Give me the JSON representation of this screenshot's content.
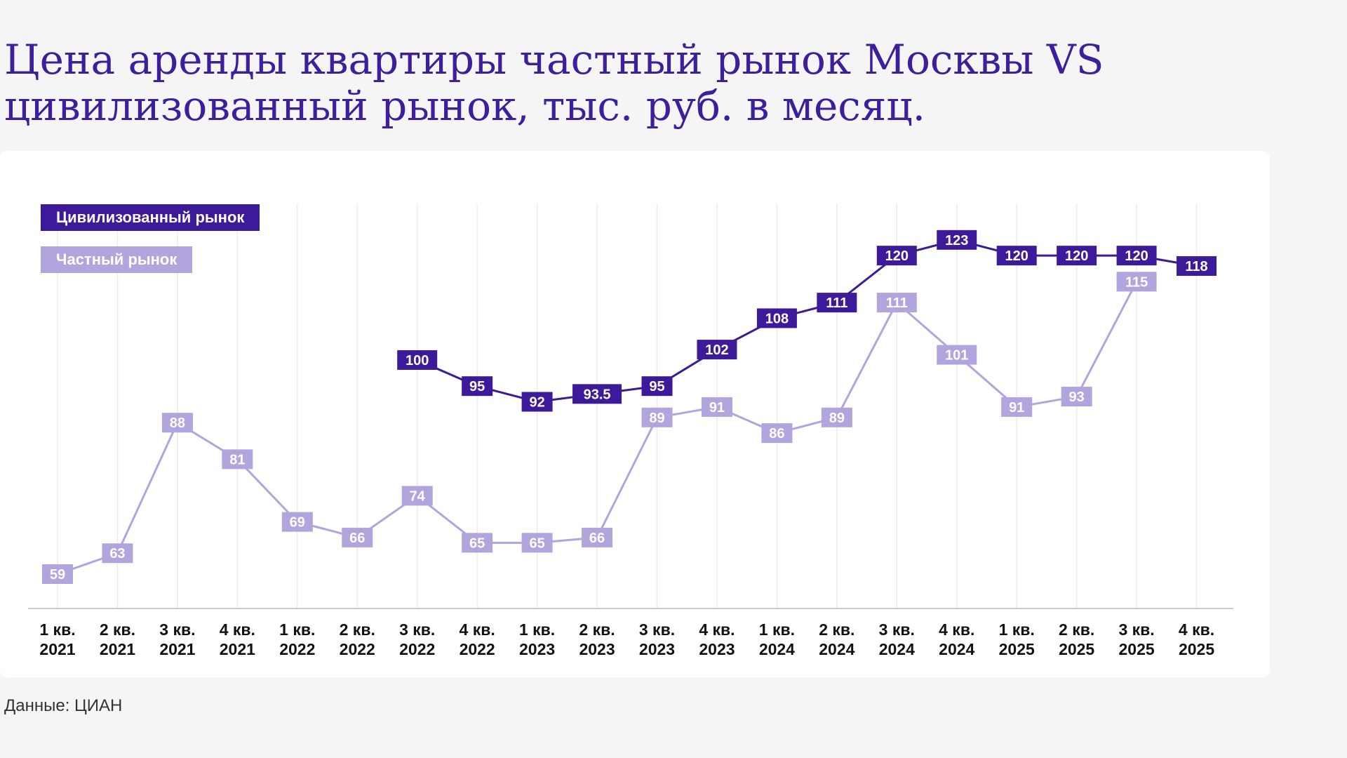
{
  "title": "Цена аренды квартиры частный рынок Москвы VS цивилизованный рынок, тыс. руб. в месяц.",
  "source": "Данные: ЦИАН",
  "colors": {
    "civilized": "#3d1a9a",
    "private": "#b2a4dc",
    "grid": "#ececec"
  },
  "chart_data": {
    "type": "line",
    "title": "Цена аренды квартиры частный рынок Москвы VS цивилизованный рынок, тыс. руб. в месяц.",
    "xlabel": "",
    "ylabel": "",
    "categories": [
      [
        "1 кв.",
        "2021"
      ],
      [
        "2 кв.",
        "2021"
      ],
      [
        "3 кв.",
        "2021"
      ],
      [
        "4 кв.",
        "2021"
      ],
      [
        "1 кв.",
        "2022"
      ],
      [
        "2 кв.",
        "2022"
      ],
      [
        "3 кв.",
        "2022"
      ],
      [
        "4 кв.",
        "2022"
      ],
      [
        "1 кв.",
        "2023"
      ],
      [
        "2 кв.",
        "2023"
      ],
      [
        "3 кв.",
        "2023"
      ],
      [
        "4 кв.",
        "2023"
      ],
      [
        "1 кв.",
        "2024"
      ],
      [
        "2 кв.",
        "2024"
      ],
      [
        "3 кв.",
        "2024"
      ],
      [
        "4 кв.",
        "2024"
      ],
      [
        "1 кв.",
        "2025"
      ],
      [
        "2 кв.",
        "2025"
      ],
      [
        "3 кв.",
        "2025"
      ],
      [
        "4 кв.",
        "2025"
      ]
    ],
    "ylim": [
      50,
      125
    ],
    "grid": "vertical",
    "legend_placement": "top-left",
    "series": [
      {
        "name": "Цивилизованный рынок",
        "key": "civilized",
        "values": [
          null,
          null,
          null,
          null,
          null,
          null,
          100,
          95,
          92,
          93.5,
          95,
          102,
          108,
          111,
          120,
          123,
          120,
          120,
          120,
          118
        ]
      },
      {
        "name": "Частный рынок",
        "key": "private",
        "values": [
          59,
          63,
          88,
          81,
          69,
          66,
          74,
          65,
          65,
          66,
          89,
          91,
          86,
          89,
          111,
          101,
          91,
          93,
          115,
          null
        ]
      }
    ]
  }
}
